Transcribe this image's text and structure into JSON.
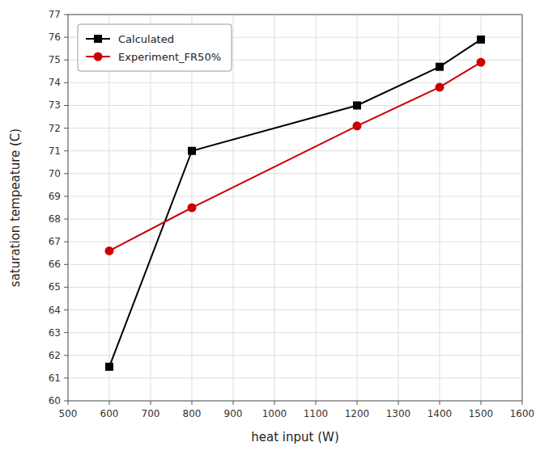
{
  "chart_data": {
    "type": "line",
    "x": [
      600,
      800,
      1200,
      1400,
      1500
    ],
    "series": [
      {
        "name": "Calculated",
        "color": "#000000",
        "marker": "square",
        "values": [
          61.5,
          71.0,
          73.0,
          74.7,
          75.9
        ]
      },
      {
        "name": "Experiment_FR50%",
        "color": "#cc0000",
        "marker": "circle",
        "values": [
          66.6,
          68.5,
          72.1,
          73.8,
          74.9
        ]
      }
    ],
    "xlabel": "heat input (W)",
    "ylabel": "saturation tempeature (C)",
    "xlim": [
      500,
      1600
    ],
    "ylim": [
      60,
      77
    ],
    "xticks": [
      500,
      600,
      700,
      800,
      900,
      1000,
      1100,
      1200,
      1300,
      1400,
      1500,
      1600
    ],
    "yticks": [
      60,
      61,
      62,
      63,
      64,
      65,
      66,
      67,
      68,
      69,
      70,
      71,
      72,
      73,
      74,
      75,
      76,
      77
    ],
    "grid": true,
    "legend": "upper-left"
  }
}
